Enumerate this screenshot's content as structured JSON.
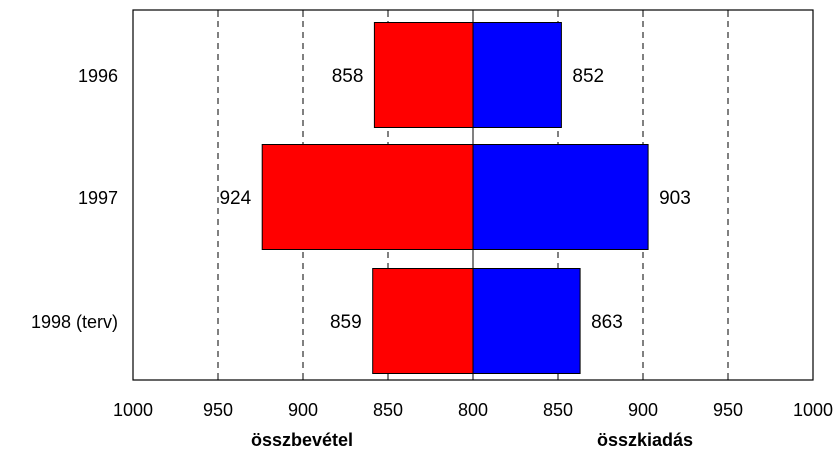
{
  "chart_data": {
    "type": "bar",
    "orientation": "horizontal-diverging",
    "categories": [
      "1996",
      "1997",
      "1998 (terv)"
    ],
    "series": [
      {
        "name": "összbevétel",
        "values": [
          858,
          924,
          859
        ],
        "color": "#ff0000"
      },
      {
        "name": "összkiadás",
        "values": [
          852,
          903,
          863
        ],
        "color": "#0000ff"
      }
    ],
    "x_center": 800,
    "left_axis": {
      "range": [
        1000,
        800
      ],
      "ticks": [
        "1000",
        "950",
        "900",
        "850",
        "800"
      ]
    },
    "right_axis": {
      "range": [
        800,
        1000
      ],
      "ticks": [
        "850",
        "900",
        "950",
        "1000"
      ]
    },
    "left_label": "összbevétel",
    "right_label": "összkiadás",
    "grid": "vertical dashed"
  }
}
